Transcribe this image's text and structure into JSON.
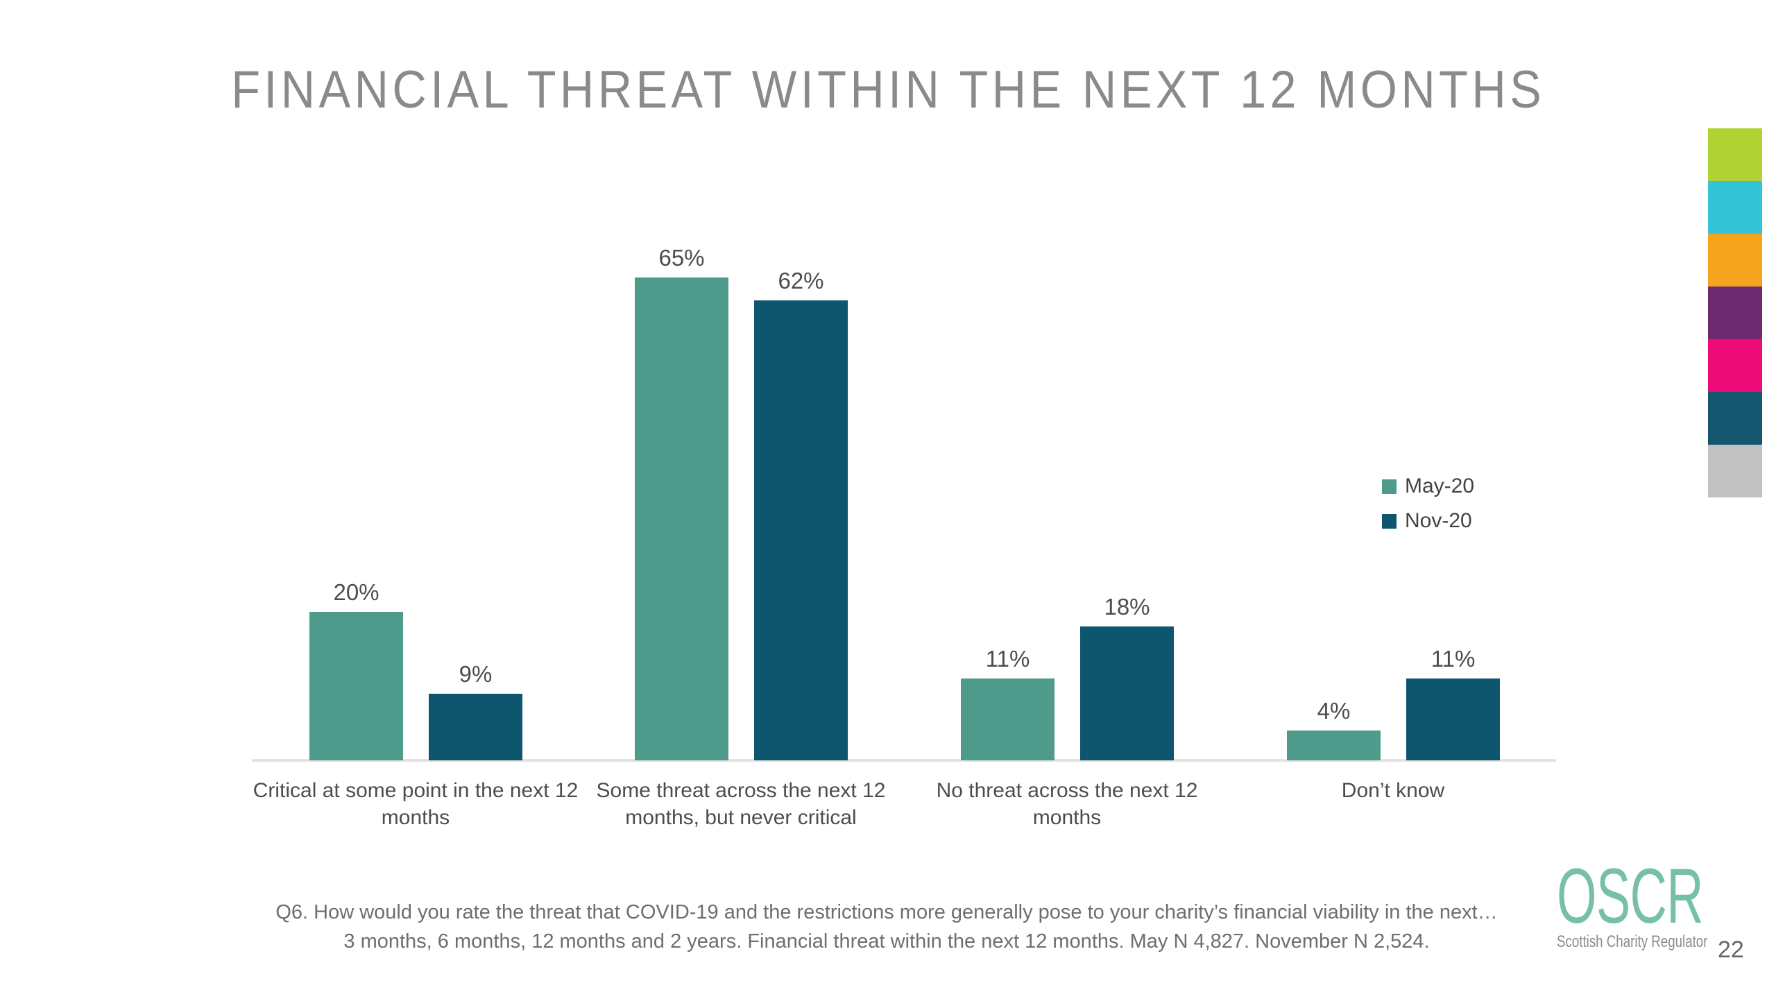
{
  "slide": {
    "title": "FINANCIAL THREAT WITHIN THE NEXT 12 MONTHS",
    "page_number": "22",
    "footnote": {
      "line1": "Q6. How would you rate the threat that COVID-19 and the restrictions more generally pose to your charity’s financial viability in the next…",
      "line2": "3 months, 6 months, 12 months and 2 years. Financial threat within the next 12 months. May N 4,827. November N 2,524."
    },
    "logo": {
      "name": "OSCR",
      "tagline": "Scottish Charity Regulator"
    }
  },
  "chart_data": {
    "type": "bar",
    "title": "FINANCIAL THREAT WITHIN THE NEXT 12 MONTHS",
    "categories": [
      "Critical at some point in the next 12 months",
      "Some threat across the next 12 months, but never critical",
      "No threat across the next 12 months",
      "Don’t know"
    ],
    "series": [
      {
        "name": "May-20",
        "color": "#4f9b8b",
        "values": [
          20,
          65,
          11,
          4
        ]
      },
      {
        "name": "Nov-20",
        "color": "#0e556e",
        "values": [
          9,
          62,
          18,
          11
        ]
      }
    ],
    "value_suffix": "%",
    "data_labels": true,
    "ylim": [
      0,
      70
    ],
    "gridlines": false,
    "y_axis_visible": false,
    "legend_position": "right"
  },
  "palette_strip": [
    "#b1d233",
    "#35c3d8",
    "#f6a41d",
    "#6d2a6f",
    "#ec0b77",
    "#14566d",
    "#c1c1c1"
  ]
}
